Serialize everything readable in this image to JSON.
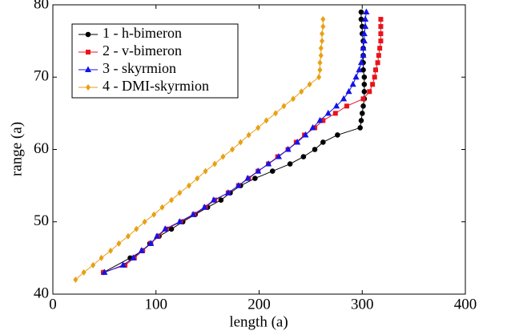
{
  "chart_data": {
    "type": "line",
    "xlabel": "length (a)",
    "ylabel": "range (a)",
    "xlim": [
      0,
      400
    ],
    "xticks": [
      0,
      100,
      200,
      300,
      400
    ],
    "ylim": [
      40,
      80
    ],
    "yticks": [
      40,
      50,
      60,
      70,
      80
    ],
    "legend": "upper left",
    "series": [
      {
        "name": "1 - h-bimeron",
        "color": "#000000",
        "marker": "circle",
        "x": [
          49,
          75,
          87,
          94,
          103,
          115,
          126,
          138,
          150,
          163,
          172,
          182,
          196,
          213,
          230,
          243,
          254,
          262,
          276,
          298,
          299,
          300,
          301,
          302,
          302,
          302,
          302,
          301,
          301,
          301,
          301,
          301,
          300,
          300,
          299,
          299
        ],
        "values": [
          43,
          45,
          46,
          47,
          48,
          49,
          50,
          51,
          52,
          53,
          54,
          55,
          56,
          57,
          58,
          59,
          60,
          61,
          62,
          63,
          64,
          65,
          66,
          67,
          68,
          69,
          70,
          71,
          72,
          73,
          74,
          75,
          76,
          77,
          78,
          79
        ]
      },
      {
        "name": "2 - v-bimeron",
        "color": "#e8141c",
        "marker": "square",
        "x": [
          49,
          70,
          79,
          87,
          95,
          102,
          110,
          124,
          137,
          148,
          157,
          170,
          180,
          190,
          199,
          209,
          218,
          228,
          236,
          244,
          254,
          262,
          274,
          285,
          301,
          307,
          310,
          312,
          313,
          315,
          316,
          317,
          318,
          318,
          318,
          318
        ],
        "values": [
          43,
          44,
          45,
          46,
          47,
          48,
          49,
          50,
          51,
          52,
          53,
          54,
          55,
          56,
          57,
          58,
          59,
          60,
          61,
          62,
          63,
          64,
          65,
          66,
          67,
          68,
          69,
          70,
          71,
          72,
          73,
          74,
          75,
          76,
          77,
          78
        ]
      },
      {
        "name": "3 - skyrmion",
        "color": "#1414e8",
        "marker": "triangle",
        "x": [
          50,
          68,
          78,
          86,
          95,
          101,
          109,
          123,
          136,
          147,
          156,
          170,
          180,
          189,
          199,
          209,
          219,
          228,
          237,
          245,
          252,
          259,
          267,
          275,
          282,
          287,
          291,
          294,
          297,
          299,
          301,
          301,
          302,
          302,
          303,
          303,
          304
        ],
        "values": [
          43,
          44,
          45,
          46,
          47,
          48,
          49,
          50,
          51,
          52,
          53,
          54,
          55,
          56,
          57,
          58,
          59,
          60,
          61,
          62,
          63,
          64,
          65,
          66,
          67,
          68,
          69,
          70,
          71,
          72,
          73,
          74,
          75,
          76,
          77,
          78,
          79
        ]
      },
      {
        "name": "4 - DMI-skyrmion",
        "color": "#e8a014",
        "marker": "diamond",
        "x": [
          22,
          30,
          39,
          47,
          56,
          64,
          73,
          81,
          89,
          98,
          106,
          115,
          123,
          132,
          140,
          148,
          157,
          165,
          174,
          182,
          190,
          199,
          207,
          216,
          224,
          233,
          241,
          249,
          258,
          259,
          259,
          260,
          260,
          261,
          261,
          262,
          262
        ],
        "values": [
          42,
          43,
          44,
          45,
          46,
          47,
          48,
          49,
          50,
          51,
          52,
          53,
          54,
          55,
          56,
          57,
          58,
          59,
          60,
          61,
          62,
          63,
          64,
          65,
          66,
          67,
          68,
          69,
          70,
          71,
          72,
          73,
          74,
          75,
          76,
          77,
          78
        ]
      }
    ]
  }
}
